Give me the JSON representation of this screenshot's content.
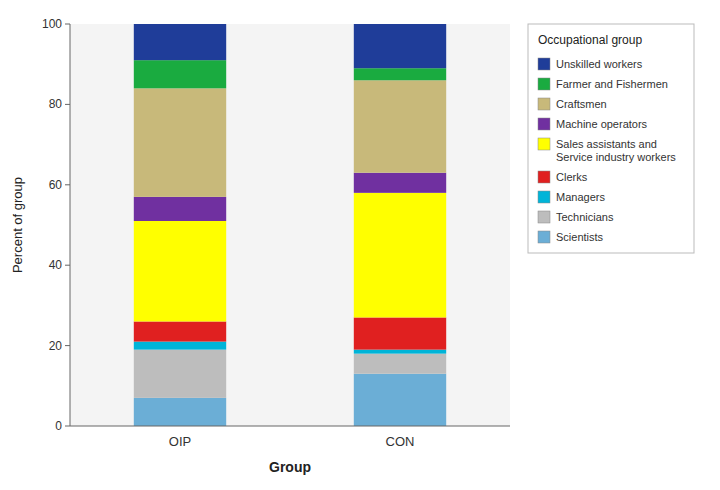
{
  "chart_data": {
    "type": "bar",
    "stacked": true,
    "xlabel": "Group",
    "ylabel": "Percent of group",
    "legend_title": "Occupational group",
    "legend": "right",
    "grid": false,
    "categories": [
      "OIP",
      "CON"
    ],
    "ylim": [
      0,
      100
    ],
    "yticks": [
      0,
      20,
      40,
      60,
      80,
      100
    ],
    "series": [
      {
        "name": "Scientists",
        "color": "#6baed6",
        "values": [
          7,
          13
        ]
      },
      {
        "name": "Technicians",
        "color": "#bdbdbd",
        "values": [
          12,
          5
        ]
      },
      {
        "name": "Managers",
        "color": "#00b4d8",
        "values": [
          2,
          1
        ]
      },
      {
        "name": "Clerks",
        "color": "#e02020",
        "values": [
          5,
          8
        ]
      },
      {
        "name": "Sales assistants and\nService industry workers",
        "color": "#ffff00",
        "values": [
          25,
          31
        ]
      },
      {
        "name": "Machine operators",
        "color": "#7030a0",
        "values": [
          6,
          5
        ]
      },
      {
        "name": "Craftsmen",
        "color": "#c8b97a",
        "values": [
          27,
          23
        ]
      },
      {
        "name": "Farmer and Fishermen",
        "color": "#1aab40",
        "values": [
          7,
          3
        ]
      },
      {
        "name": "Unskilled workers",
        "color": "#1f3d99",
        "values": [
          9,
          11
        ]
      }
    ]
  }
}
